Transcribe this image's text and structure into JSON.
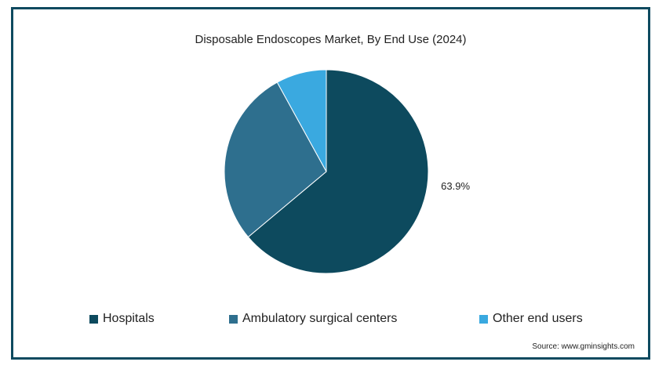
{
  "chart_data": {
    "type": "pie",
    "title": "Disposable Endoscopes Market, By End Use (2024)",
    "slices": [
      {
        "name": "Hospitals",
        "value": 63.9,
        "color": "#0d4a5e",
        "label": "63.9%"
      },
      {
        "name": "Ambulatory surgical centers",
        "value": 28.1,
        "color": "#2e6f8e",
        "label": ""
      },
      {
        "name": "Other end users",
        "value": 8.0,
        "color": "#3aa9e0",
        "label": ""
      }
    ],
    "legend_position": "bottom"
  },
  "source": "Source: www.gminsights.com"
}
